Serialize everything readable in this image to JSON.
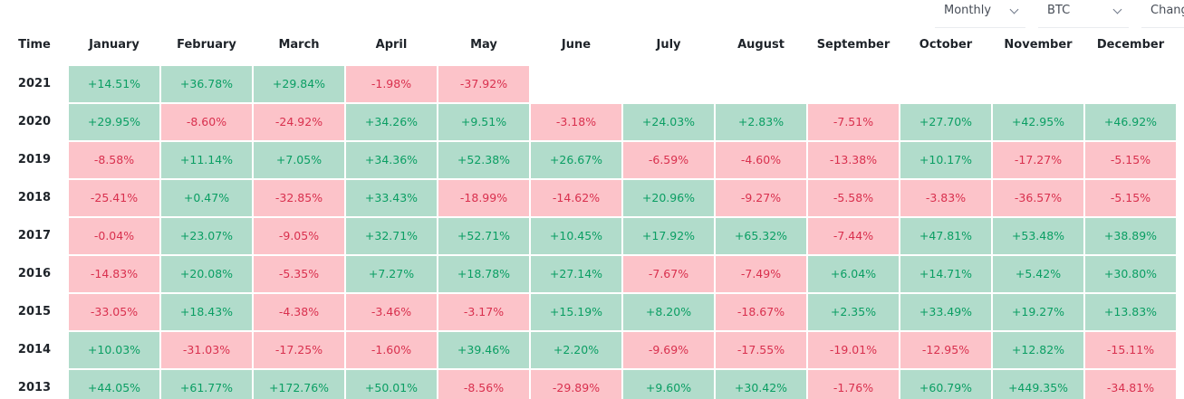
{
  "toolbar": {
    "period": "Monthly",
    "asset": "BTC",
    "mode": "Chang"
  },
  "table": {
    "columns": [
      "Time",
      "January",
      "February",
      "March",
      "April",
      "May",
      "June",
      "July",
      "August",
      "September",
      "October",
      "November",
      "December"
    ],
    "rows": [
      {
        "year": "2021",
        "values": [
          "+14.51%",
          "+36.78%",
          "+29.84%",
          "-1.98%",
          "-37.92%"
        ]
      },
      {
        "year": "2020",
        "values": [
          "+29.95%",
          "-8.60%",
          "-24.92%",
          "+34.26%",
          "+9.51%",
          "-3.18%",
          "+24.03%",
          "+2.83%",
          "-7.51%",
          "+27.70%",
          "+42.95%",
          "+46.92%"
        ]
      },
      {
        "year": "2019",
        "values": [
          "-8.58%",
          "+11.14%",
          "+7.05%",
          "+34.36%",
          "+52.38%",
          "+26.67%",
          "-6.59%",
          "-4.60%",
          "-13.38%",
          "+10.17%",
          "-17.27%",
          "-5.15%"
        ]
      },
      {
        "year": "2018",
        "values": [
          "-25.41%",
          "+0.47%",
          "-32.85%",
          "+33.43%",
          "-18.99%",
          "-14.62%",
          "+20.96%",
          "-9.27%",
          "-5.58%",
          "-3.83%",
          "-36.57%",
          "-5.15%"
        ]
      },
      {
        "year": "2017",
        "values": [
          "-0.04%",
          "+23.07%",
          "-9.05%",
          "+32.71%",
          "+52.71%",
          "+10.45%",
          "+17.92%",
          "+65.32%",
          "-7.44%",
          "+47.81%",
          "+53.48%",
          "+38.89%"
        ]
      },
      {
        "year": "2016",
        "values": [
          "-14.83%",
          "+20.08%",
          "-5.35%",
          "+7.27%",
          "+18.78%",
          "+27.14%",
          "-7.67%",
          "-7.49%",
          "+6.04%",
          "+14.71%",
          "+5.42%",
          "+30.80%"
        ]
      },
      {
        "year": "2015",
        "values": [
          "-33.05%",
          "+18.43%",
          "-4.38%",
          "-3.46%",
          "-3.17%",
          "+15.19%",
          "+8.20%",
          "-18.67%",
          "+2.35%",
          "+33.49%",
          "+19.27%",
          "+13.83%"
        ]
      },
      {
        "year": "2014",
        "values": [
          "+10.03%",
          "-31.03%",
          "-17.25%",
          "-1.60%",
          "+39.46%",
          "+2.20%",
          "-9.69%",
          "-17.55%",
          "-19.01%",
          "-12.95%",
          "+12.82%",
          "-15.11%"
        ]
      },
      {
        "year": "2013",
        "values": [
          "+44.05%",
          "+61.77%",
          "+172.76%",
          "+50.01%",
          "-8.56%",
          "-29.89%",
          "+9.60%",
          "+30.42%",
          "-1.76%",
          "+60.79%",
          "+449.35%",
          "-34.81%"
        ]
      }
    ]
  }
}
